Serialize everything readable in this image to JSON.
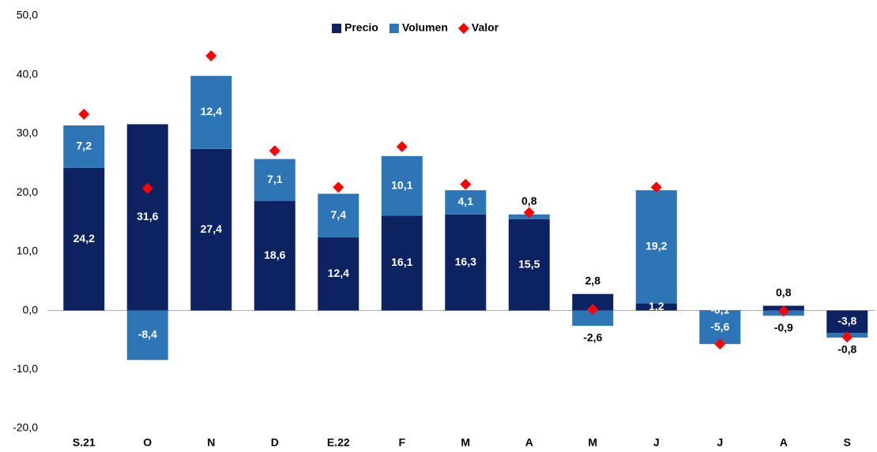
{
  "chart_data": {
    "type": "stacked-bar-with-markers",
    "categories": [
      "S.21",
      "O",
      "N",
      "D",
      "E.22",
      "F",
      "M",
      "A",
      "M",
      "J",
      "J",
      "A",
      "S"
    ],
    "series": [
      {
        "name": "Precio",
        "color": "#0d2260",
        "kind": "bar",
        "values": [
          24.2,
          31.6,
          27.4,
          18.6,
          12.4,
          16.1,
          16.3,
          15.5,
          2.8,
          1.2,
          -0.1,
          0.8,
          -3.8
        ],
        "value_labels": [
          "24,2",
          "31,6",
          "27,4",
          "18,6",
          "12,4",
          "16,1",
          "16,3",
          "15,5",
          "2,8",
          "1,2",
          "-0,1",
          "0,8",
          "-3,8"
        ]
      },
      {
        "name": "Volumen",
        "color": "#2e75b6",
        "kind": "bar",
        "values": [
          7.2,
          -8.4,
          12.4,
          7.1,
          7.4,
          10.1,
          4.1,
          0.8,
          -2.6,
          19.2,
          -5.6,
          -0.9,
          -0.8
        ],
        "value_labels": [
          "7,2",
          "-8,4",
          "12,4",
          "7,1",
          "7,4",
          "10,1",
          "4,1",
          "0,8",
          "-2,6",
          "19,2",
          "-5,6",
          "-0,9",
          "-0,8"
        ]
      },
      {
        "name": "Valor",
        "color": "#ff0000",
        "kind": "marker",
        "values": [
          33.3,
          20.7,
          43.2,
          27.1,
          20.9,
          27.8,
          21.4,
          16.6,
          0.2,
          20.9,
          -5.7,
          -0.1,
          -4.5
        ]
      }
    ],
    "ylim": [
      -20,
      50
    ],
    "yticks": [
      {
        "value": -20,
        "label": "-20,0"
      },
      {
        "value": -10,
        "label": "-10,0"
      },
      {
        "value": 0,
        "label": "0,0"
      },
      {
        "value": 10,
        "label": "10,0"
      },
      {
        "value": 20,
        "label": "20,0"
      },
      {
        "value": 30,
        "label": "30,0"
      },
      {
        "value": 40,
        "label": "40,0"
      },
      {
        "value": 50,
        "label": "50,0"
      }
    ],
    "legend": "top",
    "grid": false
  }
}
